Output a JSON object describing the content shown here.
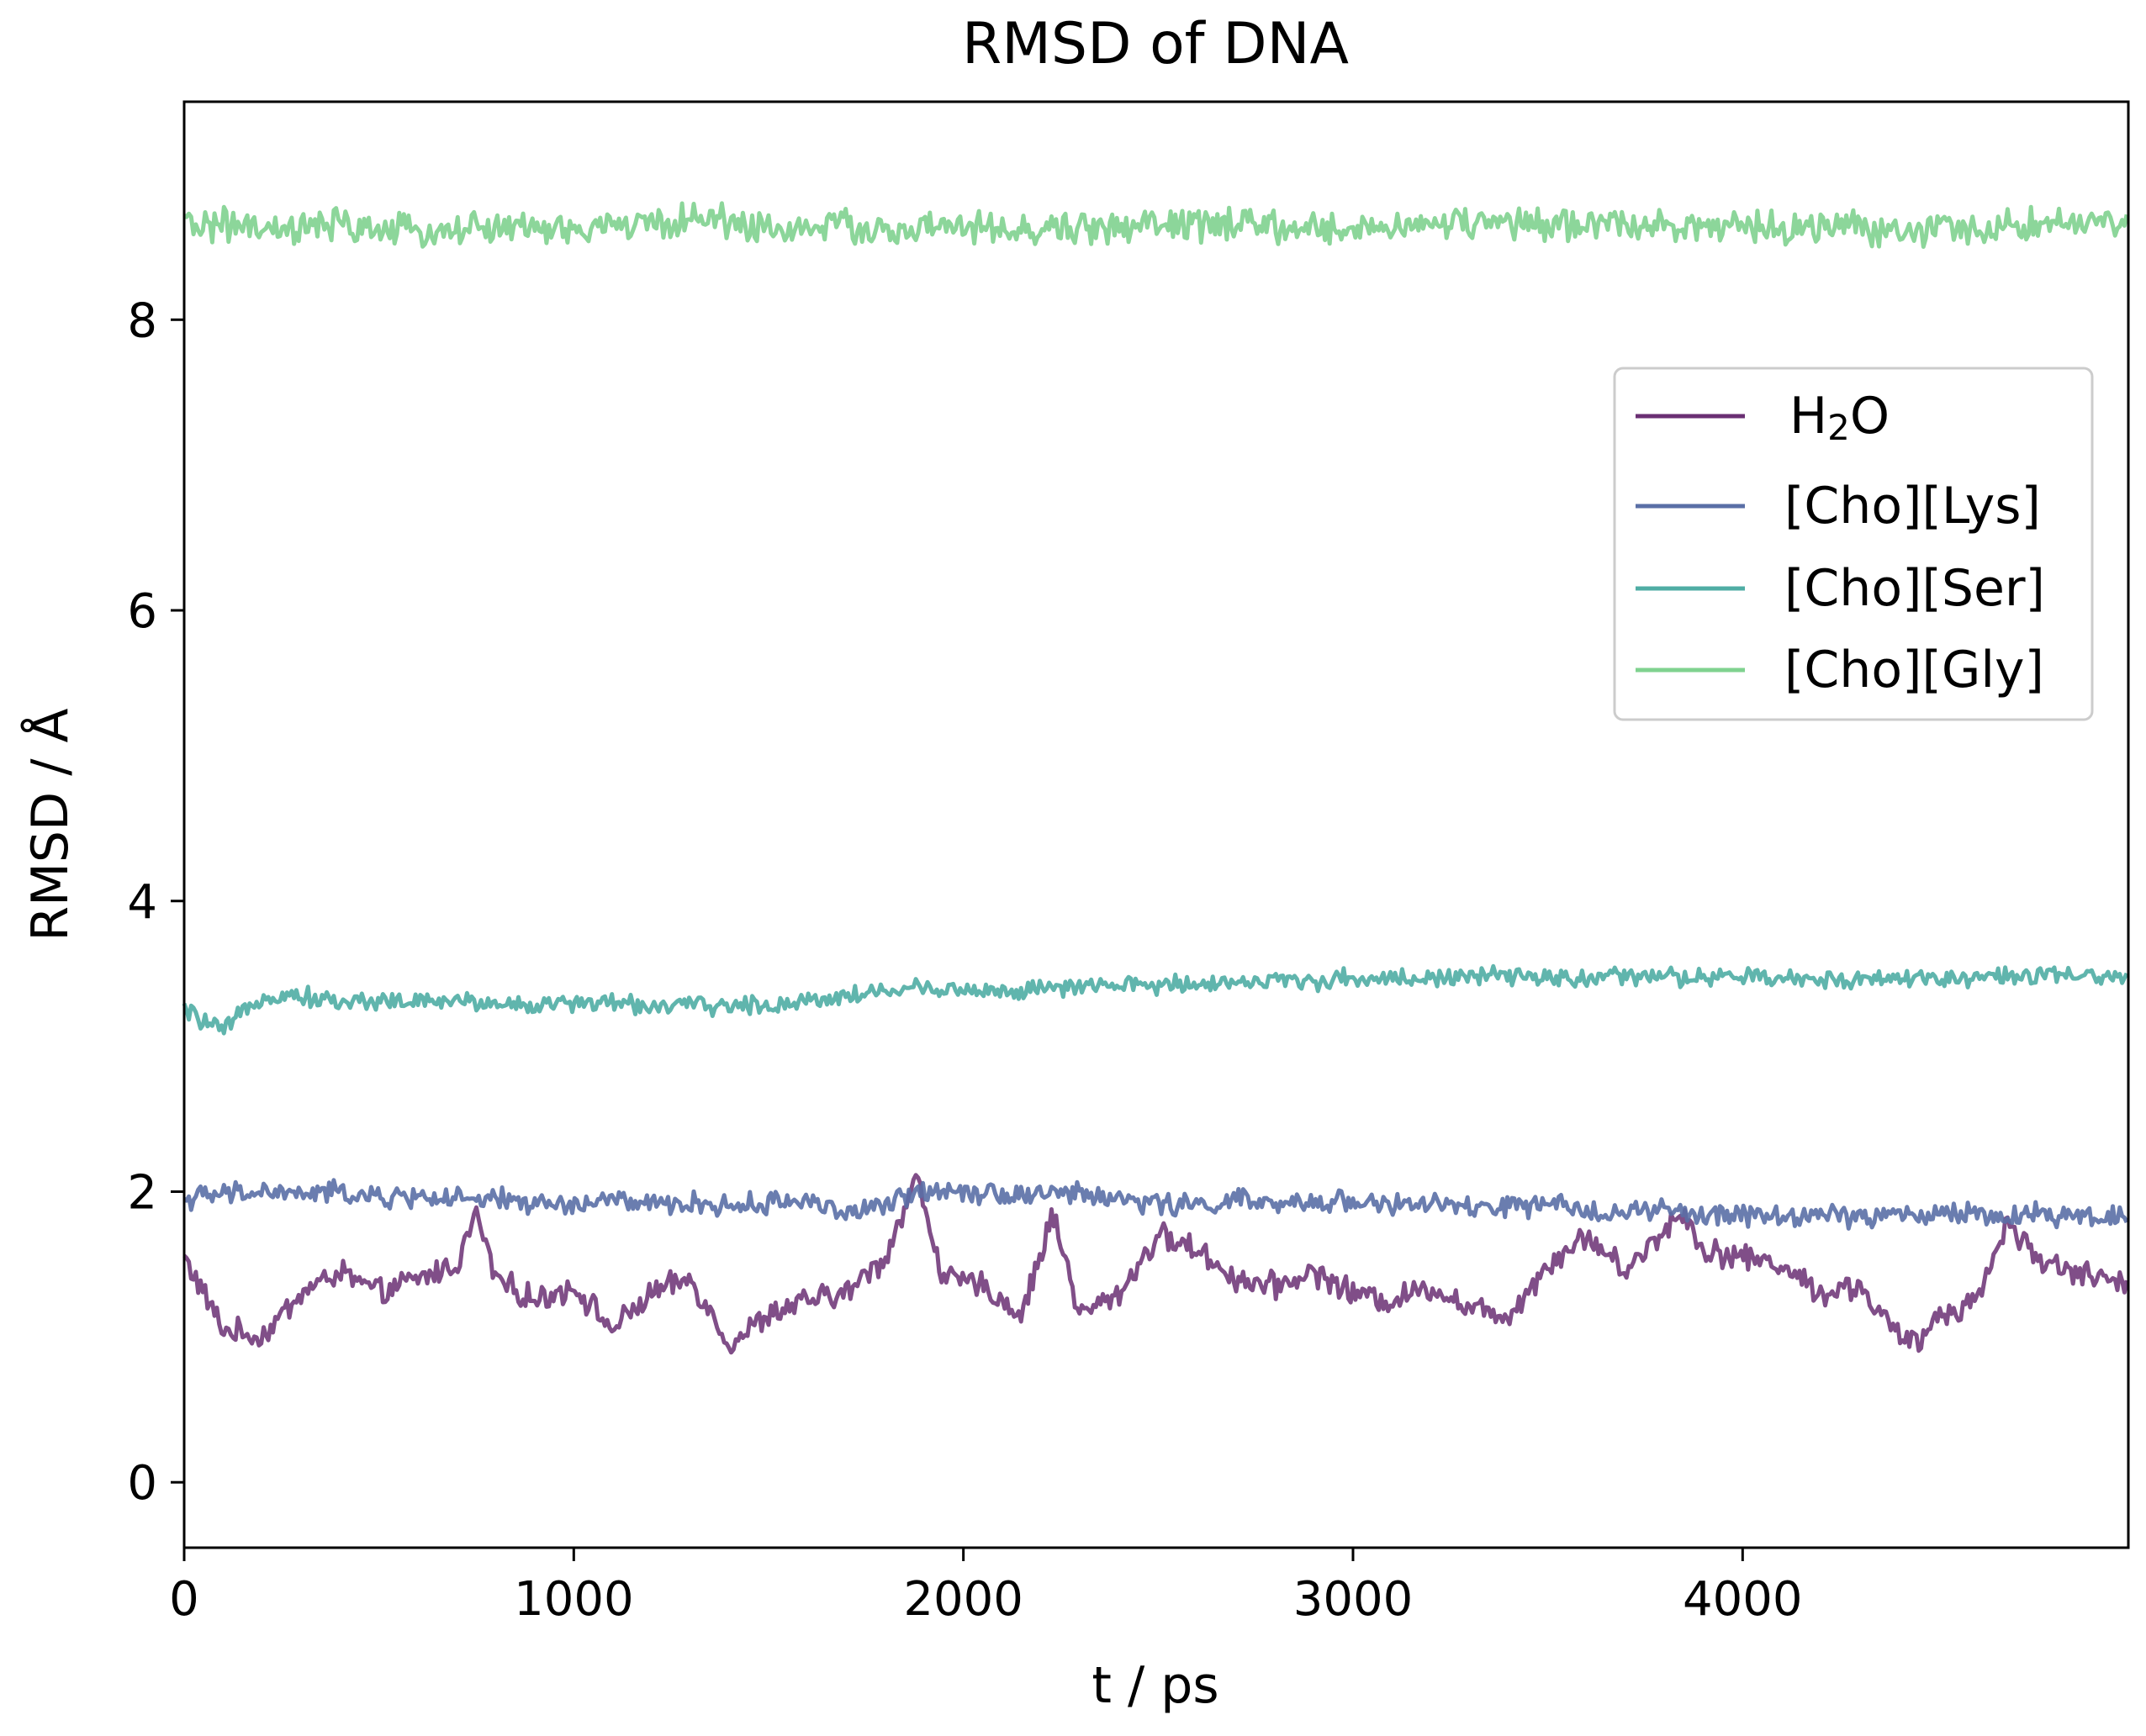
{
  "chart_data": {
    "type": "line",
    "title": "RMSD of DNA",
    "xlabel": "t / ps",
    "ylabel": "RMSD / Å",
    "xlim": [
      0,
      4990
    ],
    "ylim": [
      -0.45,
      9.5
    ],
    "xticks": [
      0,
      1000,
      2000,
      3000,
      4000
    ],
    "yticks": [
      0,
      2,
      4,
      6,
      8
    ],
    "x_tick_labels": [
      "0",
      "1000",
      "2000",
      "3000",
      "4000"
    ],
    "y_tick_labels": [
      "0",
      "2",
      "4",
      "6",
      "8"
    ],
    "grid": false,
    "legend_position": "upper-right",
    "x": [
      0,
      100,
      200,
      300,
      400,
      500,
      600,
      700,
      750,
      800,
      900,
      1000,
      1100,
      1200,
      1300,
      1400,
      1500,
      1600,
      1700,
      1800,
      1880,
      1950,
      2050,
      2150,
      2230,
      2300,
      2400,
      2500,
      2600,
      2700,
      2800,
      2900,
      3000,
      3100,
      3200,
      3300,
      3400,
      3500,
      3600,
      3700,
      3800,
      3850,
      3900,
      4000,
      4100,
      4200,
      4300,
      4400,
      4450,
      4500,
      4600,
      4680,
      4750,
      4850,
      4990
    ],
    "series": [
      {
        "name": "H₂O",
        "label_main": "H",
        "label_sub": "2",
        "label_end": "O",
        "color": "#6a2f73",
        "values": [
          1.55,
          1.05,
          1.0,
          1.3,
          1.45,
          1.3,
          1.4,
          1.5,
          1.85,
          1.4,
          1.25,
          1.35,
          1.05,
          1.3,
          1.4,
          0.95,
          1.15,
          1.25,
          1.3,
          1.55,
          2.1,
          1.4,
          1.35,
          1.15,
          1.85,
          1.15,
          1.3,
          1.7,
          1.6,
          1.4,
          1.35,
          1.45,
          1.3,
          1.25,
          1.35,
          1.2,
          1.15,
          1.5,
          1.7,
          1.45,
          1.75,
          1.85,
          1.6,
          1.55,
          1.5,
          1.3,
          1.35,
          1.0,
          0.95,
          1.15,
          1.25,
          1.8,
          1.55,
          1.45,
          1.35
        ]
      },
      {
        "name": "[Cho][Lys]",
        "color": "#5a6fa6",
        "values": [
          1.95,
          1.98,
          2.0,
          1.98,
          2.0,
          1.95,
          1.97,
          1.95,
          1.92,
          1.95,
          1.92,
          1.9,
          1.95,
          1.9,
          1.92,
          1.9,
          1.92,
          1.95,
          1.85,
          1.9,
          2.0,
          2.02,
          2.0,
          1.98,
          2.0,
          1.98,
          1.95,
          1.92,
          1.9,
          1.95,
          1.9,
          1.92,
          1.95,
          1.9,
          1.92,
          1.88,
          1.9,
          1.9,
          1.88,
          1.85,
          1.88,
          1.85,
          1.82,
          1.85,
          1.82,
          1.85,
          1.82,
          1.85,
          1.83,
          1.85,
          1.85,
          1.82,
          1.85,
          1.83,
          1.85
        ]
      },
      {
        "name": "[Cho][Ser]",
        "color": "#4fada4",
        "values": [
          3.25,
          3.1,
          3.35,
          3.35,
          3.3,
          3.32,
          3.3,
          3.32,
          3.3,
          3.3,
          3.28,
          3.3,
          3.3,
          3.28,
          3.28,
          3.28,
          3.28,
          3.32,
          3.35,
          3.38,
          3.4,
          3.4,
          3.38,
          3.38,
          3.4,
          3.4,
          3.42,
          3.42,
          3.44,
          3.44,
          3.45,
          3.45,
          3.47,
          3.47,
          3.47,
          3.48,
          3.48,
          3.47,
          3.47,
          3.48,
          3.48,
          3.47,
          3.47,
          3.48,
          3.46,
          3.46,
          3.47,
          3.47,
          3.47,
          3.47,
          3.48,
          3.48,
          3.48,
          3.48,
          3.48
        ]
      },
      {
        "name": "[Cho][Gly]",
        "color": "#7fd28f",
        "values": [
          8.65,
          8.66,
          8.6,
          8.62,
          8.65,
          8.62,
          8.6,
          8.63,
          8.62,
          8.64,
          8.63,
          8.6,
          8.66,
          8.65,
          8.7,
          8.68,
          8.62,
          8.64,
          8.65,
          8.6,
          8.62,
          8.64,
          8.62,
          8.6,
          8.63,
          8.62,
          8.65,
          8.64,
          8.66,
          8.65,
          8.63,
          8.62,
          8.62,
          8.66,
          8.64,
          8.68,
          8.65,
          8.64,
          8.65,
          8.68,
          8.66,
          8.65,
          8.64,
          8.62,
          8.63,
          8.64,
          8.63,
          8.62,
          8.6,
          8.63,
          8.62,
          8.65,
          8.67,
          8.66,
          8.64
        ]
      }
    ]
  }
}
